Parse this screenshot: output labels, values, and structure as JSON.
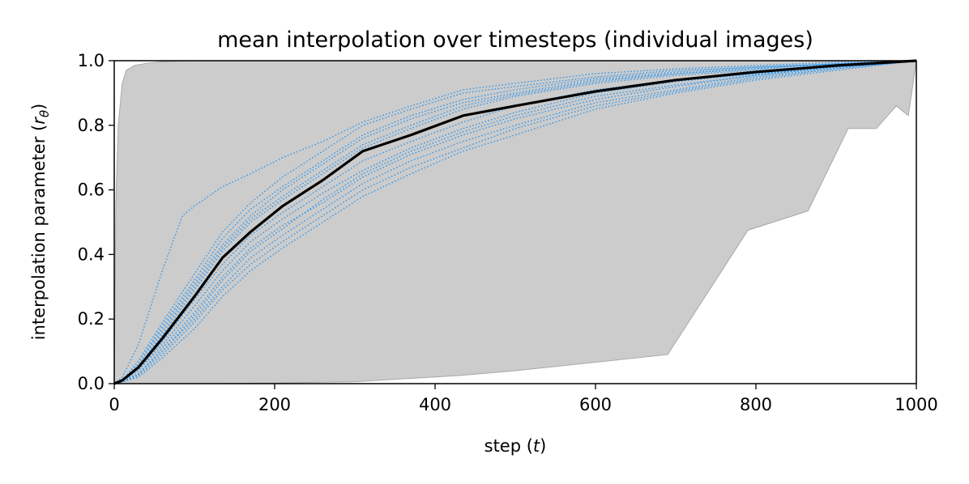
{
  "chart_data": {
    "type": "line",
    "title": "mean interpolation over timesteps (individual images)",
    "xlabel": "step (",
    "xlabel_var": "t",
    "xlabel_end": ")",
    "ylabel": "interpolation parameter (",
    "ylabel_var": "r",
    "ylabel_sub": "θ",
    "ylabel_end": ")",
    "xlim": [
      0,
      1000
    ],
    "ylim": [
      0,
      1
    ],
    "xticks": [
      0,
      200,
      400,
      600,
      800,
      1000
    ],
    "xtick_labels": [
      "0",
      "200",
      "400",
      "600",
      "800",
      "1000"
    ],
    "yticks": [
      0,
      0.2,
      0.4,
      0.6,
      0.8,
      1.0
    ],
    "ytick_labels": [
      "0.0",
      "0.2",
      "0.4",
      "0.6",
      "0.8",
      "1.0"
    ],
    "grid": false,
    "colors": {
      "band": "#cccccc",
      "band_edge": "#a8a8a8",
      "individual": "#3399ee",
      "mean": "#000000"
    },
    "band": {
      "upper": {
        "x": [
          0,
          2,
          5,
          10,
          15,
          25,
          40,
          60,
          100,
          1000
        ],
        "y": [
          0.0,
          0.55,
          0.8,
          0.93,
          0.97,
          0.985,
          0.992,
          0.997,
          1.0,
          1.0
        ]
      },
      "lower": {
        "x": [
          0,
          100,
          200,
          300,
          430,
          500,
          690,
          790,
          865,
          915,
          950,
          975,
          990,
          1000
        ],
        "y": [
          0.0,
          0.0,
          0.002,
          0.006,
          0.025,
          0.04,
          0.09,
          0.475,
          0.535,
          0.79,
          0.79,
          0.86,
          0.83,
          1.0
        ]
      }
    },
    "mean": {
      "x": [
        0,
        10,
        30,
        60,
        100,
        135,
        170,
        210,
        260,
        310,
        370,
        435,
        500,
        600,
        700,
        800,
        900,
        1000
      ],
      "y": [
        0.0,
        0.01,
        0.05,
        0.14,
        0.27,
        0.39,
        0.47,
        0.55,
        0.63,
        0.72,
        0.77,
        0.83,
        0.86,
        0.905,
        0.94,
        0.965,
        0.985,
        1.0
      ]
    },
    "series": [
      {
        "x": [
          0,
          10,
          30,
          60,
          85,
          100,
          135,
          170,
          210,
          260,
          310,
          370,
          435,
          500,
          600,
          700,
          800,
          900,
          1000
        ],
        "y": [
          0.0,
          0.02,
          0.12,
          0.35,
          0.52,
          0.55,
          0.61,
          0.65,
          0.7,
          0.75,
          0.81,
          0.86,
          0.91,
          0.93,
          0.96,
          0.975,
          0.985,
          0.995,
          1.0
        ]
      },
      {
        "x": [
          0,
          10,
          30,
          60,
          100,
          135,
          170,
          210,
          260,
          310,
          370,
          435,
          500,
          600,
          700,
          800,
          900,
          1000
        ],
        "y": [
          0.0,
          0.01,
          0.07,
          0.19,
          0.34,
          0.47,
          0.56,
          0.64,
          0.72,
          0.8,
          0.85,
          0.9,
          0.92,
          0.95,
          0.97,
          0.98,
          0.99,
          1.0
        ]
      },
      {
        "x": [
          0,
          10,
          30,
          60,
          100,
          135,
          170,
          210,
          260,
          310,
          370,
          435,
          500,
          600,
          700,
          800,
          900,
          1000
        ],
        "y": [
          0.0,
          0.01,
          0.06,
          0.17,
          0.31,
          0.43,
          0.52,
          0.6,
          0.68,
          0.76,
          0.82,
          0.87,
          0.9,
          0.94,
          0.96,
          0.975,
          0.99,
          1.0
        ]
      },
      {
        "x": [
          0,
          10,
          30,
          60,
          100,
          135,
          170,
          210,
          260,
          310,
          370,
          435,
          500,
          600,
          700,
          800,
          900,
          1000
        ],
        "y": [
          0.0,
          0.01,
          0.05,
          0.15,
          0.29,
          0.41,
          0.5,
          0.57,
          0.65,
          0.73,
          0.79,
          0.85,
          0.89,
          0.93,
          0.955,
          0.97,
          0.985,
          1.0
        ]
      },
      {
        "x": [
          0,
          10,
          30,
          60,
          100,
          135,
          170,
          210,
          260,
          310,
          370,
          435,
          500,
          600,
          700,
          800,
          900,
          1000
        ],
        "y": [
          0.0,
          0.01,
          0.04,
          0.13,
          0.26,
          0.37,
          0.46,
          0.53,
          0.61,
          0.69,
          0.75,
          0.81,
          0.86,
          0.91,
          0.94,
          0.96,
          0.985,
          1.0
        ]
      },
      {
        "x": [
          0,
          10,
          30,
          60,
          100,
          135,
          170,
          210,
          260,
          310,
          370,
          435,
          500,
          600,
          700,
          800,
          900,
          1000
        ],
        "y": [
          0.0,
          0.01,
          0.04,
          0.12,
          0.24,
          0.35,
          0.44,
          0.51,
          0.59,
          0.66,
          0.73,
          0.79,
          0.84,
          0.9,
          0.935,
          0.96,
          0.98,
          1.0
        ]
      },
      {
        "x": [
          0,
          10,
          30,
          60,
          100,
          135,
          170,
          210,
          260,
          310,
          370,
          435,
          500,
          600,
          700,
          800,
          900,
          1000
        ],
        "y": [
          0.0,
          0.01,
          0.03,
          0.11,
          0.22,
          0.33,
          0.42,
          0.49,
          0.56,
          0.64,
          0.71,
          0.77,
          0.82,
          0.88,
          0.92,
          0.955,
          0.98,
          1.0
        ]
      },
      {
        "x": [
          0,
          10,
          30,
          60,
          100,
          135,
          170,
          210,
          260,
          310,
          370,
          435,
          500,
          600,
          700,
          800,
          900,
          1000
        ],
        "y": [
          0.0,
          0.005,
          0.03,
          0.1,
          0.2,
          0.3,
          0.39,
          0.46,
          0.54,
          0.62,
          0.69,
          0.75,
          0.8,
          0.87,
          0.91,
          0.95,
          0.975,
          1.0
        ]
      },
      {
        "x": [
          0,
          10,
          30,
          60,
          100,
          135,
          170,
          210,
          260,
          310,
          370,
          435,
          500,
          600,
          700,
          800,
          900,
          1000
        ],
        "y": [
          0.0,
          0.005,
          0.025,
          0.09,
          0.19,
          0.29,
          0.37,
          0.44,
          0.52,
          0.6,
          0.67,
          0.73,
          0.79,
          0.86,
          0.905,
          0.945,
          0.975,
          1.0
        ]
      },
      {
        "x": [
          0,
          10,
          30,
          60,
          100,
          135,
          170,
          210,
          260,
          310,
          370,
          435,
          500,
          600,
          700,
          800,
          900,
          1000
        ],
        "y": [
          0.0,
          0.005,
          0.02,
          0.08,
          0.17,
          0.27,
          0.35,
          0.42,
          0.5,
          0.58,
          0.65,
          0.72,
          0.77,
          0.85,
          0.9,
          0.94,
          0.97,
          1.0
        ]
      },
      {
        "x": [
          0,
          10,
          30,
          60,
          100,
          135,
          170,
          210,
          260,
          310,
          370,
          435,
          500,
          600,
          700,
          800,
          900,
          1000
        ],
        "y": [
          0.0,
          0.01,
          0.06,
          0.18,
          0.32,
          0.45,
          0.54,
          0.61,
          0.69,
          0.77,
          0.83,
          0.88,
          0.91,
          0.945,
          0.965,
          0.98,
          0.99,
          1.0
        ]
      },
      {
        "x": [
          0,
          10,
          30,
          60,
          100,
          135,
          170,
          210,
          260,
          310,
          370,
          435,
          500,
          600,
          700,
          800,
          900,
          1000
        ],
        "y": [
          0.0,
          0.01,
          0.05,
          0.16,
          0.3,
          0.42,
          0.51,
          0.58,
          0.66,
          0.74,
          0.8,
          0.86,
          0.895,
          0.935,
          0.96,
          0.975,
          0.99,
          1.0
        ]
      },
      {
        "x": [
          0,
          10,
          30,
          60,
          100,
          135,
          170,
          210,
          260,
          310,
          370,
          435,
          500,
          600,
          700,
          800,
          900,
          1000
        ],
        "y": [
          0.0,
          0.005,
          0.03,
          0.1,
          0.21,
          0.32,
          0.41,
          0.48,
          0.57,
          0.65,
          0.72,
          0.78,
          0.83,
          0.89,
          0.925,
          0.955,
          0.98,
          1.0
        ]
      }
    ]
  }
}
